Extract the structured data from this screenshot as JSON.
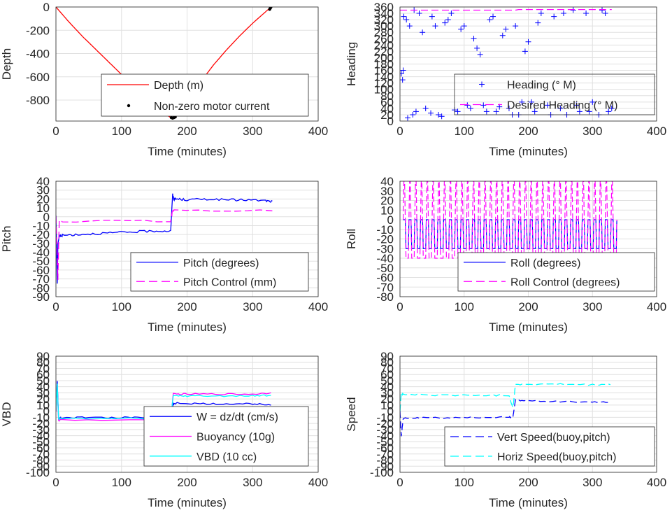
{
  "chart_data": [
    {
      "type": "line",
      "xlabel": "Time (minutes)",
      "ylabel": "Depth",
      "xlim": [
        0,
        400
      ],
      "xticks": [
        0,
        100,
        200,
        300,
        400
      ],
      "ylim": [
        -980,
        0
      ],
      "yticks": [
        -800,
        -600,
        -400,
        -200,
        0
      ],
      "grid": true,
      "legend_position": "bottom-right",
      "series": [
        {
          "name": "Depth (m)",
          "style": "line",
          "color": "#ff0000",
          "x": [
            0,
            20,
            40,
            60,
            80,
            100,
            120,
            140,
            160,
            175,
            180,
            200,
            220,
            240,
            260,
            280,
            300,
            320,
            328
          ],
          "y": [
            0,
            -130,
            -250,
            -360,
            -470,
            -580,
            -690,
            -790,
            -890,
            -950,
            -955,
            -800,
            -650,
            -500,
            -370,
            -250,
            -140,
            -40,
            0
          ]
        },
        {
          "name": "Non-zero motor current",
          "style": "dot",
          "color": "#000000",
          "x": [
            176,
            178,
            180,
            182,
            326,
            327,
            328
          ],
          "y": [
            -950,
            -955,
            -950,
            -945,
            -20,
            -10,
            0
          ]
        }
      ]
    },
    {
      "type": "scatter",
      "xlabel": "Time (minutes)",
      "ylabel": "Heading",
      "xlim": [
        0,
        400
      ],
      "xticks": [
        0,
        100,
        200,
        300,
        400
      ],
      "ylim": [
        0,
        360
      ],
      "yticks": [
        0,
        20,
        40,
        60,
        80,
        100,
        120,
        140,
        160,
        180,
        200,
        220,
        240,
        260,
        280,
        300,
        320,
        340,
        360
      ],
      "grid": true,
      "legend_position": "bottom-right",
      "series": [
        {
          "name": "Heading (° M)",
          "style": "plus",
          "color": "#0000ff",
          "x": [
            2,
            4,
            6,
            10,
            15,
            20,
            25,
            30,
            40,
            50,
            60,
            70,
            80,
            90,
            100,
            110,
            120,
            125,
            130,
            140,
            150,
            160,
            170,
            180,
            185,
            190,
            200,
            210,
            220,
            230,
            240,
            250,
            260,
            270,
            280,
            290,
            300,
            310,
            320,
            325,
            5,
            12,
            22,
            35,
            48,
            55,
            65,
            75,
            85,
            95,
            105,
            115,
            135,
            145,
            155,
            165,
            175,
            195,
            205,
            215,
            235,
            255,
            275,
            295,
            315,
            330
          ],
          "y": [
            150,
            130,
            330,
            320,
            300,
            20,
            30,
            340,
            40,
            330,
            20,
            310,
            340,
            30,
            300,
            40,
            230,
            210,
            50,
            320,
            30,
            270,
            40,
            300,
            20,
            60,
            250,
            30,
            340,
            50,
            330,
            40,
            20,
            350,
            30,
            340,
            60,
            20,
            340,
            30,
            160,
            10,
            350,
            280,
            25,
            300,
            15,
            320,
            35,
            290,
            50,
            260,
            30,
            330,
            45,
            290,
            20,
            220,
            60,
            310,
            20,
            340,
            50,
            30,
            350,
            40
          ]
        },
        {
          "name": "Desired Heading (° M)",
          "style": "dash",
          "color": "#ff00ff",
          "x": [
            0,
            100,
            180,
            185,
            330
          ],
          "y": [
            350,
            350,
            350,
            352,
            352
          ]
        }
      ]
    },
    {
      "type": "line",
      "xlabel": "Time (minutes)",
      "ylabel": "Pitch",
      "xlim": [
        0,
        400
      ],
      "xticks": [
        0,
        100,
        200,
        300,
        400
      ],
      "ylim": [
        -90,
        40
      ],
      "yticks": [
        -90,
        -80,
        -70,
        -60,
        -50,
        -40,
        -30,
        -20,
        -10,
        0,
        10,
        20,
        30,
        40
      ],
      "grid": true,
      "legend_position": "bottom-right",
      "series": [
        {
          "name": "Pitch (degrees)",
          "style": "line",
          "color": "#0000ff",
          "x": [
            0,
            2,
            3,
            5,
            10,
            30,
            60,
            90,
            120,
            150,
            175,
            178,
            180,
            185,
            200,
            230,
            260,
            290,
            320,
            330
          ],
          "y": [
            0,
            -75,
            -30,
            -22,
            -21,
            -20,
            -19,
            -18,
            -17,
            -16,
            -16,
            25,
            20,
            20,
            19,
            20,
            19,
            19,
            18,
            17
          ]
        },
        {
          "name": "Pitch Control (mm)",
          "style": "dash",
          "color": "#ff00ff",
          "x": [
            0,
            3,
            5,
            10,
            175,
            178,
            180,
            330
          ],
          "y": [
            0,
            -70,
            -5,
            -5,
            -5,
            7,
            7,
            7
          ]
        }
      ]
    },
    {
      "type": "line",
      "xlabel": "Time (minutes)",
      "ylabel": "Roll",
      "xlim": [
        0,
        400
      ],
      "xticks": [
        0,
        100,
        200,
        300,
        400
      ],
      "ylim": [
        -80,
        40
      ],
      "yticks": [
        -80,
        -70,
        -60,
        -50,
        -40,
        -30,
        -20,
        -10,
        0,
        10,
        20,
        30,
        40
      ],
      "grid": true,
      "legend_position": "bottom-right",
      "series": [
        {
          "name": "Roll (degrees)",
          "style": "line",
          "color": "#0000ff",
          "period_minutes": 9,
          "x_start": 5,
          "x_end": 330,
          "high": 0,
          "low": -30
        },
        {
          "name": "Roll Control (degrees)",
          "style": "dash",
          "color": "#ff00ff",
          "period_minutes": 9,
          "x_start": 5,
          "x_end": 330,
          "high": 40,
          "low": -40
        }
      ]
    },
    {
      "type": "line",
      "xlabel": "Time (minutes)",
      "ylabel": "VBD",
      "xlim": [
        0,
        400
      ],
      "xticks": [
        0,
        100,
        200,
        300,
        400
      ],
      "ylim": [
        -100,
        90
      ],
      "yticks": [
        -100,
        -90,
        -80,
        -70,
        -60,
        -50,
        -40,
        -30,
        -20,
        -10,
        0,
        10,
        20,
        30,
        40,
        50,
        60,
        70,
        80,
        90
      ],
      "grid": true,
      "legend_position": "bottom-right",
      "series": [
        {
          "name": "W = dz/dt (cm/s)",
          "style": "line",
          "color": "#0000ff",
          "x": [
            0,
            2,
            4,
            8,
            40,
            80,
            120,
            160,
            176,
            179,
            185,
            220,
            260,
            300,
            328
          ],
          "y": [
            0,
            50,
            -12,
            -11,
            -10,
            -11,
            -10,
            -10,
            -10,
            12,
            13,
            12,
            12,
            12,
            11
          ]
        },
        {
          "name": "Buoyancy (10g)",
          "style": "line",
          "color": "#ff00ff",
          "x": [
            0,
            2,
            4,
            8,
            175,
            179,
            200,
            250,
            300,
            328
          ],
          "y": [
            0,
            40,
            -15,
            -14,
            -14,
            28,
            28,
            28,
            28,
            30
          ]
        },
        {
          "name": "VBD (10 cc)",
          "style": "line",
          "color": "#00ffff",
          "x": [
            0,
            2,
            4,
            8,
            175,
            179,
            200,
            250,
            300,
            328
          ],
          "y": [
            0,
            45,
            -13,
            -12,
            -12,
            25,
            25,
            25,
            25,
            26
          ]
        }
      ]
    },
    {
      "type": "line",
      "xlabel": "Time (minutes)",
      "ylabel": "Speed",
      "xlim": [
        0,
        400
      ],
      "xticks": [
        0,
        100,
        200,
        300,
        400
      ],
      "ylim": [
        -100,
        90
      ],
      "yticks": [
        -100,
        -90,
        -80,
        -70,
        -60,
        -50,
        -40,
        -30,
        -20,
        -10,
        0,
        10,
        20,
        30,
        40,
        50,
        60,
        70,
        80,
        90
      ],
      "grid": true,
      "legend_position": "bottom-right",
      "series": [
        {
          "name": "Vert Speed(buoy,pitch)",
          "style": "dash",
          "color": "#0000ff",
          "x": [
            0,
            2,
            5,
            30,
            80,
            130,
            170,
            176,
            180,
            200,
            250,
            300,
            328
          ],
          "y": [
            0,
            -40,
            -12,
            -11,
            -11,
            -10,
            -10,
            -10,
            18,
            17,
            16,
            15,
            15
          ]
        },
        {
          "name": "Horiz Speed(buoy,pitch)",
          "style": "dash",
          "color": "#00ffff",
          "x": [
            0,
            2,
            5,
            30,
            80,
            130,
            170,
            176,
            180,
            200,
            250,
            300,
            328
          ],
          "y": [
            0,
            30,
            27,
            27,
            26,
            26,
            26,
            5,
            44,
            44,
            44,
            43,
            44
          ]
        }
      ]
    }
  ]
}
